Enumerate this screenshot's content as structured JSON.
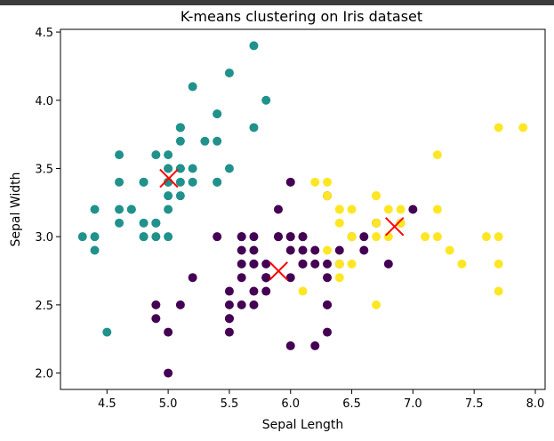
{
  "chart_data": {
    "type": "scatter",
    "title": "K-means clustering on Iris dataset",
    "xlabel": "Sepal Length",
    "ylabel": "Sepal Width",
    "xlim": [
      4.12,
      8.08
    ],
    "ylim": [
      1.88,
      4.52
    ],
    "xticks": [
      "4.5",
      "5.0",
      "5.5",
      "6.0",
      "6.5",
      "7.0",
      "7.5",
      "8.0"
    ],
    "yticks": [
      "2.0",
      "2.5",
      "3.0",
      "3.5",
      "4.0",
      "4.5"
    ],
    "grid": false,
    "colors": {
      "cluster_teal": "#21918c",
      "cluster_purple": "#440154",
      "cluster_yellow": "#fde725",
      "centroid": "#ff0000"
    },
    "series": [
      {
        "color_key": "cluster_teal",
        "points": [
          [
            5.1,
            3.5
          ],
          [
            4.9,
            3.0
          ],
          [
            4.7,
            3.2
          ],
          [
            4.6,
            3.1
          ],
          [
            5.0,
            3.6
          ],
          [
            5.4,
            3.9
          ],
          [
            4.6,
            3.4
          ],
          [
            5.0,
            3.4
          ],
          [
            4.4,
            2.9
          ],
          [
            4.9,
            3.1
          ],
          [
            5.4,
            3.7
          ],
          [
            4.8,
            3.4
          ],
          [
            4.8,
            3.0
          ],
          [
            4.3,
            3.0
          ],
          [
            5.8,
            4.0
          ],
          [
            5.7,
            4.4
          ],
          [
            5.4,
            3.9
          ],
          [
            5.1,
            3.5
          ],
          [
            5.7,
            3.8
          ],
          [
            5.1,
            3.8
          ],
          [
            5.4,
            3.4
          ],
          [
            5.1,
            3.7
          ],
          [
            4.6,
            3.6
          ],
          [
            5.1,
            3.3
          ],
          [
            4.8,
            3.4
          ],
          [
            5.0,
            3.0
          ],
          [
            5.0,
            3.4
          ],
          [
            5.2,
            3.5
          ],
          [
            5.2,
            3.4
          ],
          [
            4.7,
            3.2
          ],
          [
            4.8,
            3.1
          ],
          [
            5.4,
            3.4
          ],
          [
            5.2,
            4.1
          ],
          [
            5.5,
            4.2
          ],
          [
            4.9,
            3.1
          ],
          [
            5.0,
            3.2
          ],
          [
            5.5,
            3.5
          ],
          [
            4.9,
            3.6
          ],
          [
            4.4,
            3.0
          ],
          [
            5.1,
            3.4
          ],
          [
            5.0,
            3.5
          ],
          [
            4.5,
            2.3
          ],
          [
            4.4,
            3.2
          ],
          [
            5.0,
            3.5
          ],
          [
            5.1,
            3.8
          ],
          [
            4.8,
            3.0
          ],
          [
            5.1,
            3.8
          ],
          [
            4.6,
            3.2
          ],
          [
            5.3,
            3.7
          ],
          [
            5.0,
            3.3
          ]
        ]
      },
      {
        "color_key": "cluster_purple",
        "points": [
          [
            7.0,
            3.2
          ],
          [
            5.5,
            2.3
          ],
          [
            5.7,
            2.8
          ],
          [
            6.3,
            3.3
          ],
          [
            4.9,
            2.4
          ],
          [
            6.6,
            2.9
          ],
          [
            5.2,
            2.7
          ],
          [
            5.0,
            2.0
          ],
          [
            5.9,
            3.0
          ],
          [
            6.0,
            2.2
          ],
          [
            6.1,
            2.9
          ],
          [
            5.6,
            2.9
          ],
          [
            5.6,
            3.0
          ],
          [
            5.8,
            2.7
          ],
          [
            6.2,
            2.2
          ],
          [
            5.6,
            2.5
          ],
          [
            5.9,
            3.2
          ],
          [
            6.1,
            2.8
          ],
          [
            6.3,
            2.5
          ],
          [
            6.1,
            2.8
          ],
          [
            6.4,
            2.9
          ],
          [
            6.6,
            3.0
          ],
          [
            6.0,
            2.9
          ],
          [
            5.7,
            2.6
          ],
          [
            5.5,
            2.4
          ],
          [
            5.5,
            2.4
          ],
          [
            5.8,
            2.7
          ],
          [
            6.0,
            2.7
          ],
          [
            5.4,
            3.0
          ],
          [
            6.0,
            3.4
          ],
          [
            6.3,
            2.3
          ],
          [
            5.6,
            3.0
          ],
          [
            5.5,
            2.5
          ],
          [
            5.5,
            2.6
          ],
          [
            6.1,
            3.0
          ],
          [
            5.8,
            2.6
          ],
          [
            5.0,
            2.3
          ],
          [
            5.6,
            2.7
          ],
          [
            5.7,
            3.0
          ],
          [
            5.7,
            2.9
          ],
          [
            6.2,
            2.9
          ],
          [
            5.1,
            2.5
          ],
          [
            5.7,
            2.8
          ],
          [
            5.8,
            2.7
          ],
          [
            4.9,
            2.5
          ],
          [
            5.7,
            2.5
          ],
          [
            5.8,
            2.8
          ],
          [
            6.0,
            3.0
          ],
          [
            5.6,
            2.8
          ],
          [
            6.3,
            2.7
          ],
          [
            6.2,
            2.8
          ],
          [
            6.1,
            3.0
          ],
          [
            6.3,
            2.8
          ],
          [
            6.0,
            3.0
          ],
          [
            5.8,
            2.7
          ],
          [
            6.3,
            2.5
          ],
          [
            6.5,
            3.0
          ],
          [
            5.9,
            3.0
          ],
          [
            6.4,
            2.8
          ],
          [
            6.8,
            2.8
          ],
          [
            6.7,
            3.1
          ],
          [
            6.9,
            3.1
          ]
        ]
      },
      {
        "color_key": "cluster_yellow",
        "points": [
          [
            6.4,
            3.2
          ],
          [
            6.9,
            3.1
          ],
          [
            6.5,
            2.8
          ],
          [
            6.3,
            2.9
          ],
          [
            6.7,
            3.1
          ],
          [
            6.7,
            3.0
          ],
          [
            6.8,
            3.0
          ],
          [
            6.7,
            2.5
          ],
          [
            6.3,
            3.3
          ],
          [
            7.1,
            3.0
          ],
          [
            6.5,
            3.0
          ],
          [
            7.6,
            3.0
          ],
          [
            7.3,
            2.9
          ],
          [
            6.7,
            3.3
          ],
          [
            7.2,
            3.6
          ],
          [
            6.5,
            3.2
          ],
          [
            6.4,
            2.7
          ],
          [
            6.4,
            3.2
          ],
          [
            6.5,
            3.0
          ],
          [
            7.7,
            3.8
          ],
          [
            7.7,
            2.6
          ],
          [
            6.9,
            3.2
          ],
          [
            7.7,
            2.8
          ],
          [
            6.7,
            3.3
          ],
          [
            7.2,
            3.2
          ],
          [
            6.4,
            2.8
          ],
          [
            7.2,
            3.0
          ],
          [
            7.4,
            2.8
          ],
          [
            7.9,
            3.8
          ],
          [
            6.4,
            2.8
          ],
          [
            7.7,
            3.0
          ],
          [
            6.3,
            3.4
          ],
          [
            6.4,
            3.1
          ],
          [
            6.9,
            3.1
          ],
          [
            6.8,
            3.2
          ],
          [
            6.7,
            3.3
          ],
          [
            6.2,
            3.4
          ],
          [
            6.1,
            2.6
          ]
        ]
      },
      {
        "color_key": "centroid",
        "marker": "x",
        "points": [
          [
            5.006,
            3.428
          ],
          [
            5.902,
            2.748
          ],
          [
            6.85,
            3.074
          ]
        ]
      }
    ]
  }
}
